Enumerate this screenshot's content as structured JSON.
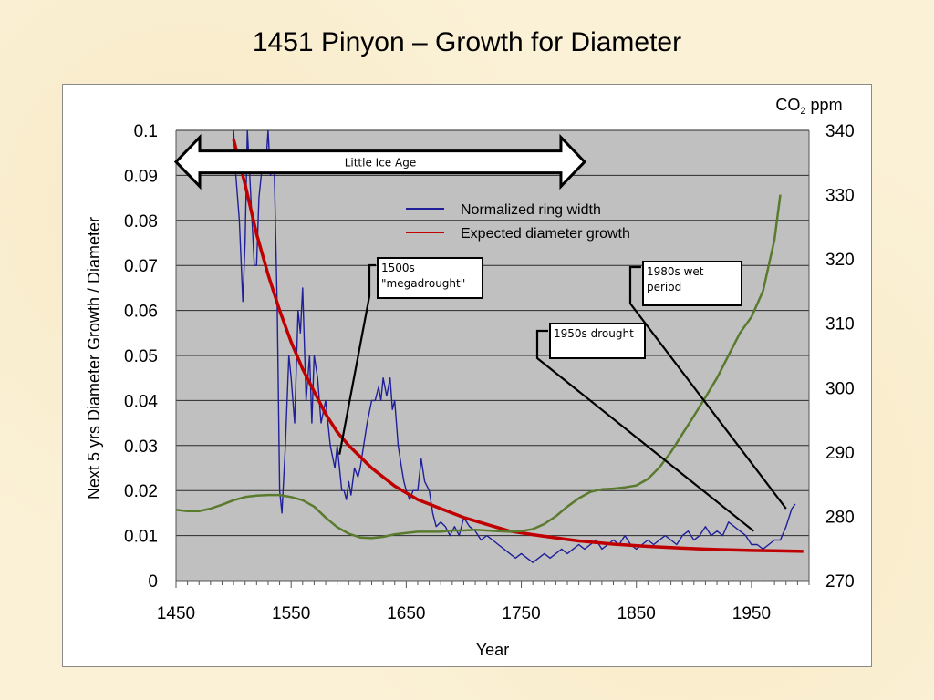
{
  "slide": {
    "title": "1451 Pinyon – Growth for Diameter"
  },
  "chart_data": {
    "type": "line",
    "x_axis": {
      "label": "Year",
      "range": [
        1450,
        2000
      ],
      "ticks": [
        1450,
        1550,
        1650,
        1750,
        1850,
        1950
      ]
    },
    "y_axis_left": {
      "label": "Next 5  yrs Diameter Growth / Diameter",
      "range": [
        0,
        0.1
      ],
      "ticks": [
        0,
        0.01,
        0.02,
        0.03,
        0.04,
        0.05,
        0.06,
        0.07,
        0.08,
        0.09,
        0.1
      ],
      "tick_labels": [
        "0",
        "0.01",
        "0.02",
        "0.03",
        "0.04",
        "0.05",
        "0.06",
        "0.07",
        "0.08",
        "0.09",
        "0.1"
      ]
    },
    "y_axis_right": {
      "label_main": "CO",
      "label_sub": "2",
      "label_unit": " ppm",
      "range": [
        270,
        340
      ],
      "ticks": [
        270,
        280,
        290,
        300,
        310,
        320,
        330,
        340
      ]
    },
    "grid": true,
    "legend_position": "top-center",
    "series": [
      {
        "name": "Normalized ring width",
        "color": "#1f1f9a",
        "axis": "left",
        "x": [
          1500,
          1502,
          1505,
          1508,
          1510,
          1512,
          1514,
          1516,
          1518,
          1520,
          1522,
          1524,
          1526,
          1528,
          1530,
          1532,
          1535,
          1538,
          1540,
          1542,
          1545,
          1548,
          1550,
          1553,
          1556,
          1558,
          1560,
          1563,
          1566,
          1568,
          1570,
          1573,
          1576,
          1580,
          1584,
          1588,
          1590,
          1592,
          1594,
          1596,
          1598,
          1600,
          1602,
          1605,
          1608,
          1610,
          1613,
          1616,
          1620,
          1623,
          1626,
          1628,
          1630,
          1633,
          1636,
          1638,
          1640,
          1643,
          1646,
          1648,
          1650,
          1653,
          1656,
          1660,
          1663,
          1666,
          1670,
          1673,
          1676,
          1680,
          1684,
          1688,
          1692,
          1696,
          1700,
          1705,
          1710,
          1715,
          1720,
          1725,
          1730,
          1735,
          1740,
          1745,
          1750,
          1755,
          1760,
          1765,
          1770,
          1775,
          1780,
          1785,
          1790,
          1795,
          1800,
          1805,
          1810,
          1815,
          1820,
          1825,
          1830,
          1835,
          1840,
          1845,
          1850,
          1855,
          1860,
          1865,
          1870,
          1875,
          1880,
          1885,
          1890,
          1895,
          1900,
          1905,
          1910,
          1915,
          1920,
          1925,
          1930,
          1935,
          1940,
          1945,
          1950,
          1955,
          1960,
          1965,
          1970,
          1975,
          1980,
          1985,
          1988
        ],
        "y": [
          0.1,
          0.09,
          0.08,
          0.062,
          0.075,
          0.1,
          0.09,
          0.08,
          0.07,
          0.07,
          0.085,
          0.09,
          0.095,
          0.092,
          0.1,
          0.09,
          0.095,
          0.06,
          0.02,
          0.015,
          0.03,
          0.05,
          0.045,
          0.035,
          0.06,
          0.055,
          0.065,
          0.04,
          0.05,
          0.035,
          0.05,
          0.045,
          0.035,
          0.04,
          0.03,
          0.025,
          0.03,
          0.025,
          0.02,
          0.02,
          0.018,
          0.022,
          0.019,
          0.025,
          0.023,
          0.025,
          0.03,
          0.035,
          0.04,
          0.04,
          0.043,
          0.04,
          0.045,
          0.041,
          0.045,
          0.038,
          0.04,
          0.03,
          0.025,
          0.022,
          0.02,
          0.018,
          0.02,
          0.02,
          0.027,
          0.022,
          0.02,
          0.015,
          0.012,
          0.013,
          0.012,
          0.01,
          0.012,
          0.01,
          0.014,
          0.012,
          0.011,
          0.009,
          0.01,
          0.009,
          0.008,
          0.007,
          0.006,
          0.005,
          0.006,
          0.005,
          0.004,
          0.005,
          0.006,
          0.005,
          0.006,
          0.007,
          0.006,
          0.007,
          0.008,
          0.007,
          0.008,
          0.009,
          0.007,
          0.008,
          0.009,
          0.008,
          0.01,
          0.008,
          0.007,
          0.008,
          0.009,
          0.008,
          0.009,
          0.01,
          0.009,
          0.008,
          0.01,
          0.011,
          0.009,
          0.01,
          0.012,
          0.01,
          0.011,
          0.01,
          0.013,
          0.012,
          0.011,
          0.01,
          0.008,
          0.008,
          0.007,
          0.008,
          0.009,
          0.009,
          0.012,
          0.016,
          0.017
        ]
      },
      {
        "name": "Expected diameter growth",
        "color": "#c00000",
        "axis": "left",
        "x": [
          1500,
          1510,
          1520,
          1530,
          1540,
          1550,
          1560,
          1570,
          1580,
          1590,
          1600,
          1620,
          1640,
          1660,
          1680,
          1700,
          1720,
          1740,
          1760,
          1780,
          1800,
          1830,
          1860,
          1890,
          1920,
          1950,
          1975,
          1995
        ],
        "y": [
          0.098,
          0.088,
          0.077,
          0.068,
          0.06,
          0.053,
          0.047,
          0.042,
          0.037,
          0.033,
          0.03,
          0.025,
          0.021,
          0.018,
          0.016,
          0.014,
          0.0125,
          0.011,
          0.0102,
          0.0095,
          0.0088,
          0.0081,
          0.0076,
          0.0072,
          0.0069,
          0.0067,
          0.0066,
          0.0065
        ]
      },
      {
        "axis": "right",
        "color": "#5a7a2e",
        "x": [
          1450,
          1460,
          1470,
          1480,
          1490,
          1500,
          1510,
          1520,
          1530,
          1540,
          1550,
          1560,
          1570,
          1580,
          1590,
          1600,
          1610,
          1620,
          1630,
          1640,
          1650,
          1660,
          1670,
          1680,
          1690,
          1700,
          1710,
          1720,
          1730,
          1740,
          1750,
          1760,
          1770,
          1780,
          1790,
          1800,
          1810,
          1820,
          1830,
          1840,
          1850,
          1860,
          1870,
          1880,
          1890,
          1900,
          1910,
          1920,
          1930,
          1940,
          1950,
          1960,
          1970,
          1975
        ],
        "y": [
          281,
          280.8,
          280.8,
          281.2,
          281.8,
          282.5,
          283,
          283.2,
          283.3,
          283.3,
          283,
          282.5,
          281.5,
          279.8,
          278.3,
          277.3,
          276.7,
          276.6,
          276.8,
          277.2,
          277.4,
          277.6,
          277.6,
          277.6,
          277.8,
          277.8,
          277.9,
          277.8,
          277.7,
          277.6,
          277.7,
          278,
          278.8,
          280,
          281.5,
          282.8,
          283.8,
          284.2,
          284.3,
          284.5,
          284.8,
          285.8,
          287.6,
          290,
          292.8,
          295.6,
          298.5,
          301.5,
          305,
          308.5,
          311,
          315,
          323,
          330
        ]
      }
    ],
    "annotations": [
      {
        "text": "Little Ice Age",
        "type": "double-arrow",
        "x_start": 1450,
        "x_end": 1805,
        "y": 0.093
      },
      {
        "lines": [
          "1500s",
          "\"megadrought\""
        ],
        "target_x": 1592,
        "target_y": 0.028
      },
      {
        "lines": [
          "1950s drought"
        ],
        "target_x": 1952,
        "target_y": 0.011
      },
      {
        "lines": [
          "1980s wet",
          "period"
        ],
        "target_x": 1980,
        "target_y": 0.016
      }
    ]
  }
}
